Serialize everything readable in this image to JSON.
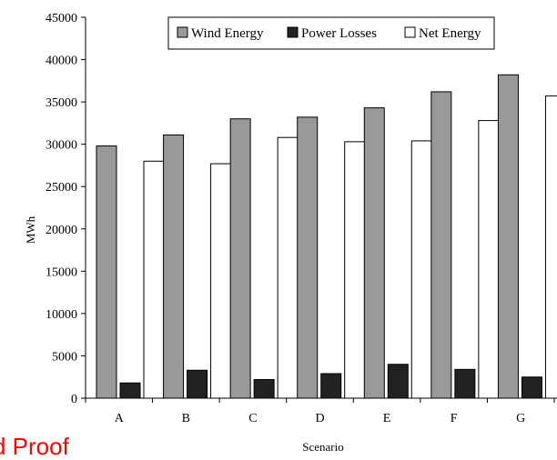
{
  "chart_data": {
    "type": "bar",
    "title": "",
    "xlabel": "Scenario",
    "ylabel": "MWh",
    "ylim": [
      0,
      45000
    ],
    "yticks": [
      0,
      5000,
      10000,
      15000,
      20000,
      25000,
      30000,
      35000,
      40000,
      45000
    ],
    "categories": [
      "A",
      "B",
      "C",
      "D",
      "E",
      "F",
      "G"
    ],
    "series": [
      {
        "name": "Wind Energy",
        "color": "#999999",
        "values": [
          29800,
          31100,
          33000,
          33200,
          34300,
          36200,
          38200
        ]
      },
      {
        "name": "Power Losses",
        "color": "#222222",
        "values": [
          1800,
          3300,
          2200,
          2900,
          4000,
          3400,
          2500
        ]
      },
      {
        "name": "Net Energy",
        "color": "#ffffff",
        "values": [
          28000,
          27700,
          30800,
          30300,
          30400,
          32800,
          35700
        ]
      }
    ],
    "legend_position": "top-right",
    "grid": false
  },
  "watermark_text": "d Proof"
}
